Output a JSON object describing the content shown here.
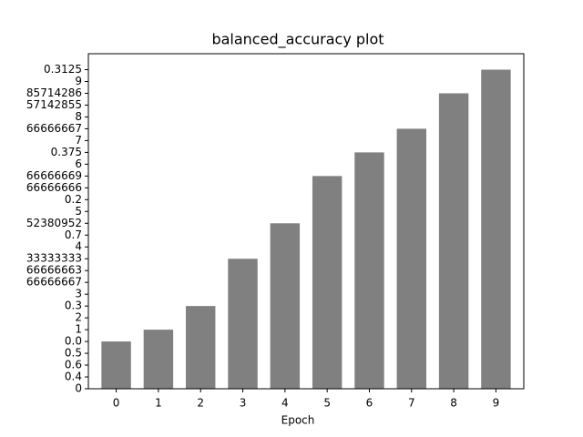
{
  "chart_data": {
    "type": "bar",
    "title": "balanced_accuracy plot",
    "x_label": "Epoch",
    "categories": [
      "0",
      "1",
      "2",
      "3",
      "4",
      "5",
      "6",
      "7",
      "8",
      "9"
    ],
    "values": [
      4,
      5,
      7,
      11,
      14,
      18,
      20,
      22,
      25,
      27
    ],
    "color": "#808080",
    "ylim": [
      0,
      28.35
    ],
    "yticks": [
      0,
      {
        "value": 1,
        "label": "0.4"
      },
      {
        "value": 2,
        "label": "0.6"
      },
      {
        "value": 3,
        "label": "0.5"
      },
      {
        "value": 4,
        "label": "0.0"
      },
      {
        "value": 5,
        "label": "1"
      },
      {
        "value": 6,
        "label": "2"
      },
      {
        "value": 7,
        "label": "0.3"
      },
      {
        "value": 8,
        "label": "3"
      },
      {
        "value": 9,
        "label": "66666667"
      },
      {
        "value": 10,
        "label": "66666663"
      },
      {
        "value": 11,
        "label": "33333333"
      },
      {
        "value": 12,
        "label": "4"
      },
      {
        "value": 13,
        "label": "0.7"
      },
      {
        "value": 14,
        "label": "52380952"
      },
      {
        "value": 15,
        "label": "5"
      },
      {
        "value": 16,
        "label": "0.2"
      },
      {
        "value": 17,
        "label": "66666666"
      },
      {
        "value": 18,
        "label": "66666669"
      },
      {
        "value": 19,
        "label": "6"
      },
      {
        "value": 20,
        "label": "0.375"
      },
      {
        "value": 21,
        "label": "7"
      },
      {
        "value": 22,
        "label": "66666667"
      },
      {
        "value": 23,
        "label": "8"
      },
      {
        "value": 24,
        "label": "57142855"
      },
      {
        "value": 25,
        "label": "85714286"
      },
      {
        "value": 26,
        "label": "9"
      },
      {
        "value": 27,
        "label": "0.3125"
      }
    ],
    "grid": false
  }
}
